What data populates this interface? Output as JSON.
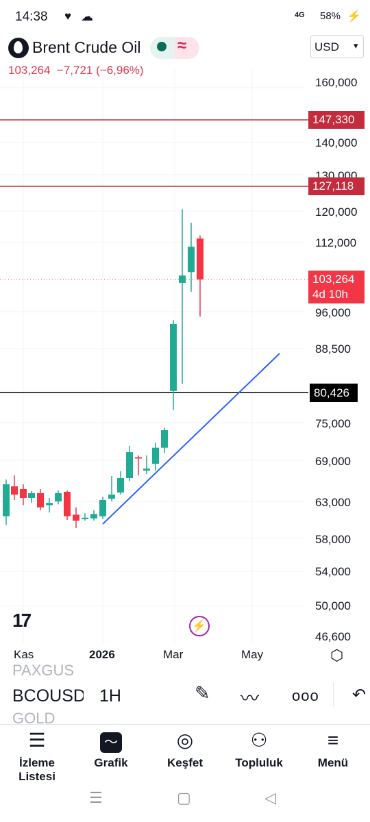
{
  "status_bar": {
    "time": "14:38",
    "heart_icon": "♥",
    "cloud_icon": "☁",
    "network": "4G",
    "battery": "58%",
    "battery_icon": "⚡"
  },
  "header": {
    "symbol_name": "Brent Crude Oil",
    "price": "103,264",
    "change": "−7,721",
    "change_pct": "(−6,96%)",
    "currency": "USD"
  },
  "chart": {
    "y_ticks": [
      "160,000",
      "140,000",
      "130,000",
      "120,000",
      "112,000",
      "96,000",
      "88,500",
      "75,000",
      "69,000",
      "63,000",
      "58,000",
      "54,000",
      "50,000",
      "46,600"
    ],
    "x_ticks": [
      "Kas",
      "2026",
      "Mar",
      "May"
    ],
    "tags": {
      "line_high": "147,330",
      "line_mid": "127,118",
      "last_price": "103,264",
      "countdown": "4d 10h",
      "support": "80,426"
    },
    "colors": {
      "up": "#22ab94",
      "down": "#f23645",
      "trend": "#2962ff",
      "red_line": "#c42b3c"
    },
    "tradingview_logo": "17"
  },
  "chart_data": {
    "type": "candlestick",
    "x_labels": [
      "Kas",
      "2026",
      "Mar",
      "May"
    ],
    "y_range": [
      46600,
      160000
    ],
    "horizontal_levels": [
      147330,
      127118,
      80426
    ],
    "last_price": 103264,
    "candles": [
      {
        "o": 61000,
        "h": 66200,
        "l": 59800,
        "c": 65500
      },
      {
        "o": 65200,
        "h": 66800,
        "l": 63200,
        "c": 64000
      },
      {
        "o": 64800,
        "h": 65500,
        "l": 62500,
        "c": 63500
      },
      {
        "o": 63500,
        "h": 64500,
        "l": 62800,
        "c": 64200
      },
      {
        "o": 64200,
        "h": 64800,
        "l": 61800,
        "c": 62200
      },
      {
        "o": 62500,
        "h": 63500,
        "l": 61500,
        "c": 62800
      },
      {
        "o": 63000,
        "h": 64600,
        "l": 62600,
        "c": 64200
      },
      {
        "o": 64400,
        "h": 64600,
        "l": 60500,
        "c": 61000
      },
      {
        "o": 61200,
        "h": 62200,
        "l": 59400,
        "c": 60400
      },
      {
        "o": 60600,
        "h": 61400,
        "l": 60400,
        "c": 60800
      },
      {
        "o": 60700,
        "h": 61800,
        "l": 60400,
        "c": 61300
      },
      {
        "o": 61000,
        "h": 63700,
        "l": 60600,
        "c": 63200
      },
      {
        "o": 63400,
        "h": 66700,
        "l": 63000,
        "c": 64000
      },
      {
        "o": 64300,
        "h": 67400,
        "l": 64000,
        "c": 66400
      },
      {
        "o": 66400,
        "h": 71300,
        "l": 66000,
        "c": 70300
      },
      {
        "o": 69500,
        "h": 69800,
        "l": 66800,
        "c": 69300
      },
      {
        "o": 67500,
        "h": 69800,
        "l": 67000,
        "c": 67800
      },
      {
        "o": 68500,
        "h": 71800,
        "l": 67500,
        "c": 71000
      },
      {
        "o": 71000,
        "h": 74200,
        "l": 70200,
        "c": 73800
      },
      {
        "o": 80700,
        "h": 94300,
        "l": 77300,
        "c": 93500
      },
      {
        "o": 102500,
        "h": 120500,
        "l": 82000,
        "c": 104200
      },
      {
        "o": 105000,
        "h": 117000,
        "l": 100500,
        "c": 111000
      },
      {
        "o": 113000,
        "h": 113800,
        "l": 95000,
        "c": 103264
      }
    ]
  },
  "symbol_bar": {
    "prev_symbol": "PAXGUS",
    "current_symbol": "BCOUSD",
    "next_symbol": "GOLD",
    "interval": "1H",
    "pen_icon": "✎",
    "draw_icon": "〰",
    "more_icon": "ooo",
    "undo_icon": "↶"
  },
  "bottom_nav": [
    {
      "label": "İzleme Listesi",
      "icon": "☰"
    },
    {
      "label": "Grafik",
      "icon": "〜"
    },
    {
      "label": "Keşfet",
      "icon": "◎"
    },
    {
      "label": "Topluluk",
      "icon": "⚇"
    },
    {
      "label": "Menü",
      "icon": "≡"
    }
  ],
  "system_nav": {
    "recents": "☰",
    "home": "▢",
    "back": "◁"
  }
}
